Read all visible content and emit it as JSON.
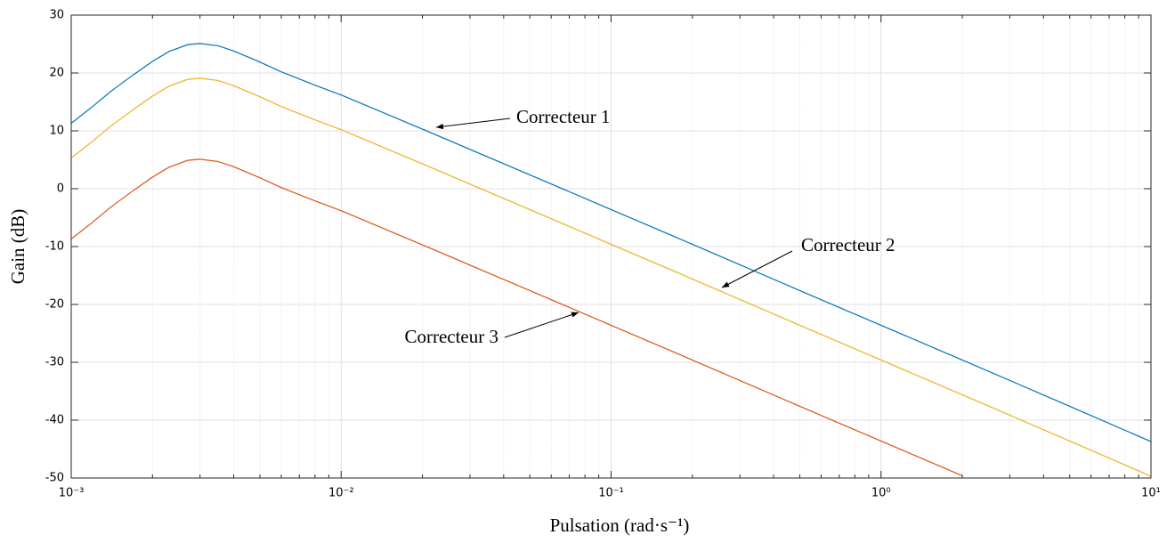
{
  "chart_data": {
    "type": "line",
    "xlabel": "Pulsation (rad·s⁻¹)",
    "ylabel": "Gain (dB)",
    "log_x": true,
    "grid": true,
    "x": [
      0.001,
      0.0012,
      0.0014,
      0.0017,
      0.002,
      0.0023,
      0.0027,
      0.003,
      0.0035,
      0.004,
      0.005,
      0.006,
      0.008,
      0.01,
      0.02,
      0.05,
      0.1,
      0.2,
      0.5,
      1,
      2,
      5,
      10
    ],
    "series": [
      {
        "name": "Correcteur 1",
        "color": "#0072bd",
        "values": [
          11.3,
          14.2,
          16.8,
          19.7,
          22.0,
          23.7,
          24.9,
          25.1,
          24.7,
          23.8,
          21.9,
          20.2,
          17.9,
          16.2,
          10.3,
          2.4,
          -3.6,
          -9.6,
          -17.6,
          -23.6,
          -29.6,
          -37.6,
          -43.7
        ]
      },
      {
        "name": "Correcteur 2",
        "color": "#edb120",
        "values": [
          5.3,
          8.2,
          10.8,
          13.7,
          16.0,
          17.7,
          18.9,
          19.1,
          18.7,
          17.8,
          15.9,
          14.2,
          11.9,
          10.2,
          4.3,
          -3.6,
          -9.6,
          -15.6,
          -23.6,
          -29.6,
          -35.6,
          -43.6,
          -49.7
        ]
      },
      {
        "name": "Correcteur 3",
        "color": "#d95319",
        "values": [
          -8.7,
          -5.8,
          -3.2,
          -0.3,
          2.0,
          3.7,
          4.9,
          5.1,
          4.7,
          3.8,
          1.9,
          0.2,
          -2.1,
          -3.8,
          -9.7,
          -17.6,
          -23.6,
          -29.6,
          -37.6,
          -43.6,
          -49.6,
          null,
          null
        ]
      }
    ],
    "xlim": [
      0.001,
      10
    ],
    "xticks": [
      {
        "value": 0.001,
        "label": "10⁻³"
      },
      {
        "value": 0.01,
        "label": "10⁻²"
      },
      {
        "value": 0.1,
        "label": "10⁻¹"
      },
      {
        "value": 1,
        "label": "10⁰"
      },
      {
        "value": 10,
        "label": "10¹"
      }
    ],
    "ylim": [
      -50,
      30
    ],
    "yticks": [
      -50,
      -40,
      -30,
      -20,
      -10,
      0,
      10,
      20,
      30
    ]
  }
}
